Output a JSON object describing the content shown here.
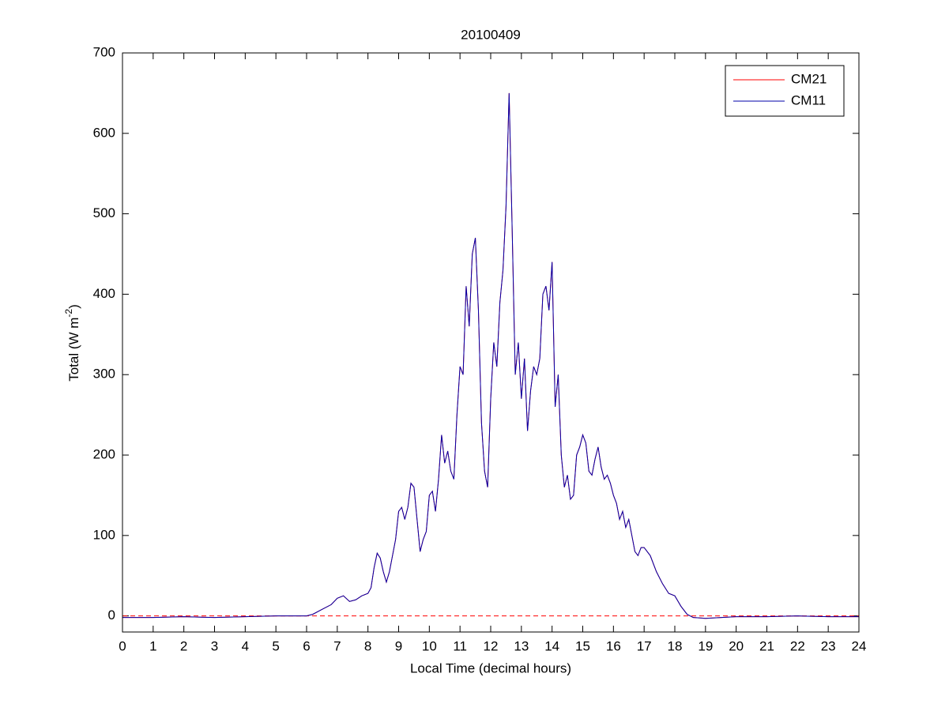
{
  "chart_data": {
    "type": "line",
    "title": "20100409",
    "xlabel": "Local Time (decimal hours)",
    "ylabel_parts": [
      "Total (W m",
      "-2",
      ")"
    ],
    "xlim": [
      0,
      24
    ],
    "xticks": [
      0,
      1,
      2,
      3,
      4,
      5,
      6,
      7,
      8,
      9,
      10,
      11,
      12,
      13,
      14,
      15,
      16,
      17,
      18,
      19,
      20,
      21,
      22,
      23,
      24
    ],
    "ylim": [
      -20,
      700
    ],
    "yticks": [
      0,
      100,
      200,
      300,
      400,
      500,
      600,
      700
    ],
    "grid": false,
    "legend": "upper right",
    "reference_line": {
      "y": 0,
      "color": "#ff0000",
      "style": "dashed"
    },
    "x": [
      0,
      1,
      2,
      3,
      4,
      5,
      5.5,
      6,
      6.2,
      6.5,
      6.8,
      7,
      7.2,
      7.4,
      7.6,
      7.8,
      8,
      8.1,
      8.2,
      8.3,
      8.4,
      8.5,
      8.6,
      8.7,
      8.8,
      8.9,
      9,
      9.1,
      9.2,
      9.3,
      9.4,
      9.5,
      9.6,
      9.7,
      9.8,
      9.9,
      10,
      10.1,
      10.2,
      10.3,
      10.4,
      10.5,
      10.6,
      10.7,
      10.8,
      10.9,
      11,
      11.1,
      11.2,
      11.3,
      11.4,
      11.5,
      11.6,
      11.7,
      11.8,
      11.9,
      12,
      12.1,
      12.2,
      12.3,
      12.4,
      12.5,
      12.6,
      12.7,
      12.8,
      12.9,
      13,
      13.1,
      13.2,
      13.3,
      13.4,
      13.5,
      13.6,
      13.7,
      13.8,
      13.9,
      14,
      14.1,
      14.2,
      14.3,
      14.4,
      14.5,
      14.6,
      14.7,
      14.8,
      14.9,
      15,
      15.1,
      15.2,
      15.3,
      15.4,
      15.5,
      15.6,
      15.7,
      15.8,
      15.9,
      16,
      16.1,
      16.2,
      16.3,
      16.4,
      16.5,
      16.6,
      16.7,
      16.8,
      16.9,
      17,
      17.2,
      17.4,
      17.6,
      17.8,
      18,
      18.2,
      18.4,
      18.6,
      19,
      20,
      21,
      22,
      23,
      24
    ],
    "series": [
      {
        "name": "CM21",
        "color": "#ff0000",
        "values": [
          -2,
          -2,
          -1,
          -2,
          -1,
          0,
          0,
          0,
          2,
          8,
          14,
          22,
          25,
          18,
          20,
          25,
          28,
          35,
          60,
          78,
          72,
          55,
          42,
          55,
          75,
          95,
          130,
          135,
          120,
          135,
          165,
          160,
          120,
          80,
          95,
          105,
          150,
          155,
          130,
          170,
          225,
          190,
          205,
          180,
          170,
          250,
          310,
          300,
          410,
          360,
          450,
          470,
          380,
          240,
          180,
          160,
          270,
          340,
          310,
          390,
          430,
          510,
          650,
          480,
          300,
          340,
          270,
          320,
          230,
          280,
          310,
          300,
          320,
          400,
          410,
          380,
          440,
          260,
          300,
          200,
          160,
          175,
          145,
          150,
          200,
          210,
          225,
          215,
          180,
          175,
          195,
          210,
          185,
          170,
          175,
          165,
          150,
          140,
          120,
          130,
          110,
          120,
          100,
          80,
          75,
          85,
          85,
          75,
          55,
          40,
          28,
          25,
          12,
          2,
          -2,
          -3,
          -1,
          -1,
          0,
          -1,
          -1
        ]
      },
      {
        "name": "CM11",
        "color": "#0000aa",
        "values": [
          -2,
          -2,
          -1,
          -2,
          -1,
          0,
          0,
          0,
          2,
          8,
          14,
          22,
          25,
          18,
          20,
          25,
          28,
          35,
          60,
          78,
          72,
          55,
          42,
          55,
          75,
          95,
          130,
          135,
          120,
          135,
          165,
          160,
          120,
          80,
          95,
          105,
          150,
          155,
          130,
          170,
          225,
          190,
          205,
          180,
          170,
          250,
          310,
          300,
          410,
          360,
          450,
          470,
          380,
          240,
          180,
          160,
          270,
          340,
          310,
          390,
          430,
          510,
          650,
          480,
          300,
          340,
          270,
          320,
          230,
          280,
          310,
          300,
          320,
          400,
          410,
          380,
          440,
          260,
          300,
          200,
          160,
          175,
          145,
          150,
          200,
          210,
          225,
          215,
          180,
          175,
          195,
          210,
          185,
          170,
          175,
          165,
          150,
          140,
          120,
          130,
          110,
          120,
          100,
          80,
          75,
          85,
          85,
          75,
          55,
          40,
          28,
          25,
          12,
          2,
          -2,
          -3,
          -1,
          -1,
          0,
          -1,
          -1
        ]
      }
    ]
  }
}
